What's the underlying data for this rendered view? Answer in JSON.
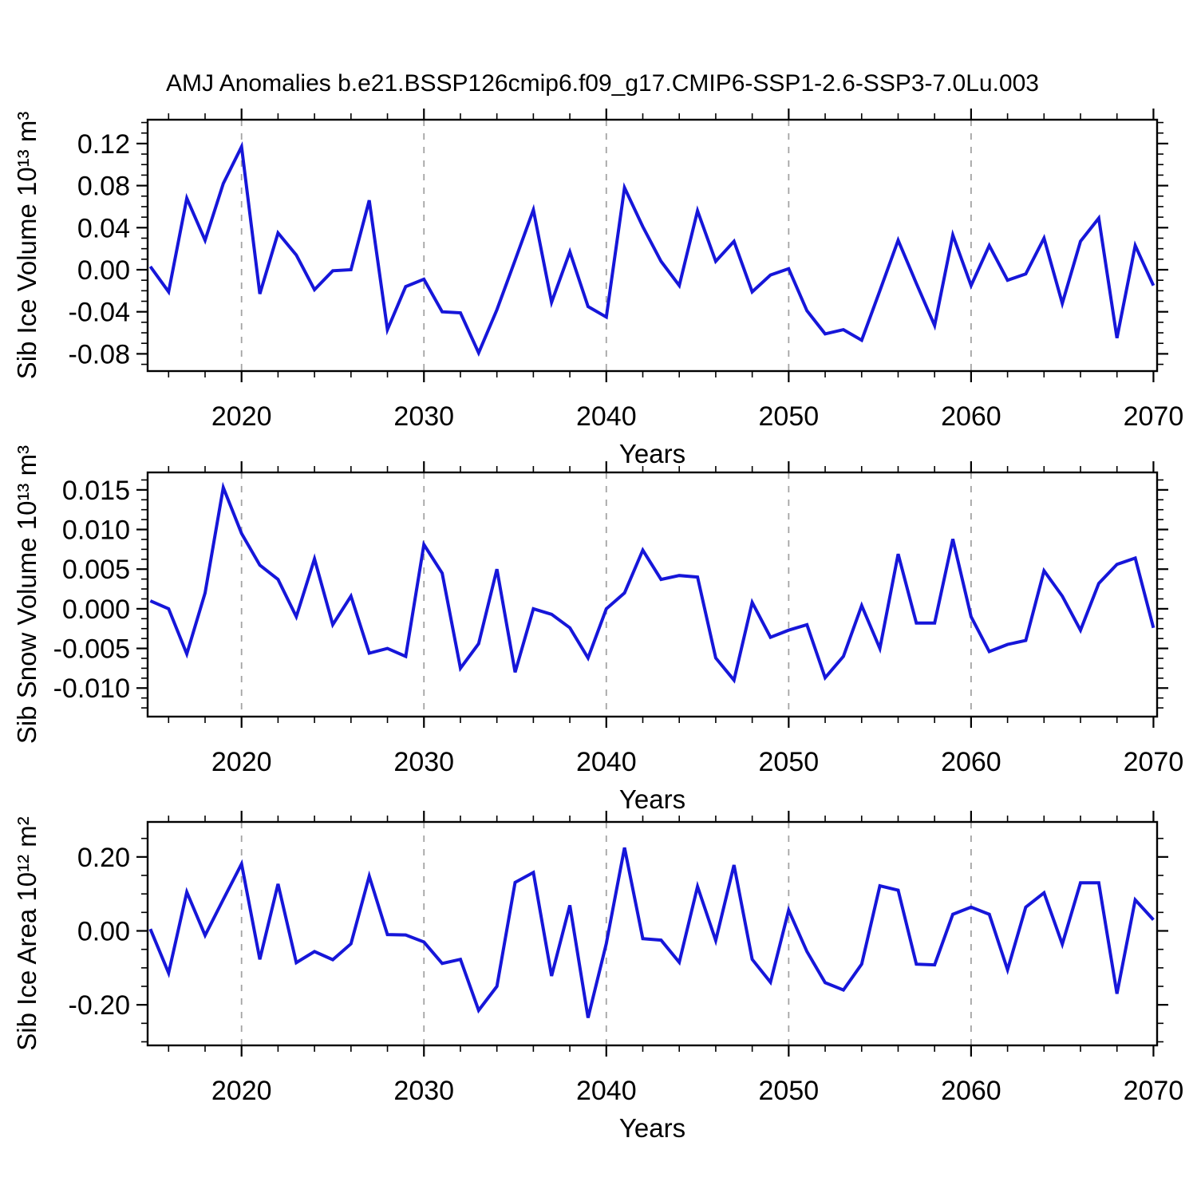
{
  "title": "AMJ Anomalies b.e21.BSSP126cmip6.f09_g17.CMIP6-SSP1-2.6-SSP3-7.0Lu.003",
  "style": {
    "line_color": "#1616d9",
    "grid_color": "#a3a3a3",
    "frame_color": "#000000"
  },
  "chart_data": [
    {
      "type": "line",
      "name": "sib-ice-volume",
      "ylabel": "Sib Ice Volume 10¹³ m³",
      "xlabel": "Years",
      "x": [
        2015,
        2016,
        2017,
        2018,
        2019,
        2020,
        2021,
        2022,
        2023,
        2024,
        2025,
        2026,
        2027,
        2028,
        2029,
        2030,
        2031,
        2032,
        2033,
        2034,
        2035,
        2036,
        2037,
        2038,
        2039,
        2040,
        2041,
        2042,
        2043,
        2044,
        2045,
        2046,
        2047,
        2048,
        2049,
        2050,
        2051,
        2052,
        2053,
        2054,
        2055,
        2056,
        2057,
        2058,
        2059,
        2060,
        2061,
        2062,
        2063,
        2064,
        2065,
        2066,
        2067,
        2068,
        2069,
        2070
      ],
      "values": [
        0.003,
        -0.021,
        0.068,
        0.028,
        0.082,
        0.117,
        -0.023,
        0.035,
        0.014,
        -0.019,
        -0.001,
        0.0,
        0.066,
        -0.057,
        -0.016,
        -0.009,
        -0.04,
        -0.041,
        -0.079,
        -0.038,
        0.009,
        0.057,
        -0.031,
        0.017,
        -0.035,
        -0.045,
        0.078,
        0.041,
        0.008,
        -0.015,
        0.056,
        0.008,
        0.027,
        -0.021,
        -0.005,
        0.001,
        -0.039,
        -0.061,
        -0.057,
        -0.067,
        -0.02,
        0.028,
        -0.013,
        -0.053,
        0.033,
        -0.015,
        0.023,
        -0.01,
        -0.004,
        0.03,
        -0.032,
        0.027,
        0.049,
        -0.065,
        0.023,
        -0.015
      ],
      "xlim": [
        2014.85,
        2070.2
      ],
      "ylim": [
        -0.0964,
        0.1427
      ],
      "yticks": {
        "values": [
          0.12,
          0.08,
          0.04,
          0.0,
          -0.04,
          -0.08
        ],
        "labels": [
          "0.12",
          "0.08",
          "0.04",
          "0.00",
          "-0.04",
          "-0.08"
        ]
      },
      "y_minor_step": 0.01,
      "xticks": {
        "values": [
          2020,
          2030,
          2040,
          2050,
          2060,
          2070
        ],
        "labels": [
          "2020",
          "2030",
          "2040",
          "2050",
          "2060",
          "2070"
        ]
      },
      "x_minor_step": 2,
      "grid_x": [
        2020,
        2030,
        2040,
        2050,
        2060
      ],
      "grid_on": true,
      "legend": "none"
    },
    {
      "type": "line",
      "name": "sib-snow-volume",
      "ylabel": "Sib Snow Volume 10¹³ m³",
      "xlabel": "Years",
      "x": [
        2015,
        2016,
        2017,
        2018,
        2019,
        2020,
        2021,
        2022,
        2023,
        2024,
        2025,
        2026,
        2027,
        2028,
        2029,
        2030,
        2031,
        2032,
        2033,
        2034,
        2035,
        2036,
        2037,
        2038,
        2039,
        2040,
        2041,
        2042,
        2043,
        2044,
        2045,
        2046,
        2047,
        2048,
        2049,
        2050,
        2051,
        2052,
        2053,
        2054,
        2055,
        2056,
        2057,
        2058,
        2059,
        2060,
        2061,
        2062,
        2063,
        2064,
        2065,
        2066,
        2067,
        2068,
        2069,
        2070
      ],
      "values": [
        0.001,
        0.0,
        -0.0057,
        0.002,
        0.0153,
        0.0095,
        0.0055,
        0.0037,
        -0.001,
        0.0063,
        -0.002,
        0.0016,
        -0.0056,
        -0.005,
        -0.006,
        0.0081,
        0.0045,
        -0.0075,
        -0.0044,
        0.005,
        -0.008,
        0.0,
        -0.0007,
        -0.0024,
        -0.0062,
        0.0,
        0.002,
        0.0074,
        0.0037,
        0.0042,
        0.004,
        -0.0062,
        -0.009,
        0.0008,
        -0.0036,
        -0.0027,
        -0.002,
        -0.0087,
        -0.006,
        0.0004,
        -0.005,
        0.0069,
        -0.0018,
        -0.0018,
        0.0088,
        -0.001,
        -0.0054,
        -0.0045,
        -0.004,
        0.0048,
        0.0016,
        -0.0027,
        0.0032,
        0.0056,
        0.0064,
        -0.0024
      ],
      "xlim": [
        2014.85,
        2070.2
      ],
      "ylim": [
        -0.0136,
        0.0172
      ],
      "yticks": {
        "values": [
          0.015,
          0.01,
          0.005,
          0.0,
          -0.005,
          -0.01
        ],
        "labels": [
          "0.015",
          "0.010",
          "0.005",
          "0.000",
          "-0.005",
          "-0.010"
        ]
      },
      "y_minor_step": 0.00125,
      "xticks": {
        "values": [
          2020,
          2030,
          2040,
          2050,
          2060,
          2070
        ],
        "labels": [
          "2020",
          "2030",
          "2040",
          "2050",
          "2060",
          "2070"
        ]
      },
      "x_minor_step": 2,
      "grid_x": [
        2020,
        2030,
        2040,
        2050,
        2060
      ],
      "grid_on": true,
      "legend": "none"
    },
    {
      "type": "line",
      "name": "sib-ice-area",
      "ylabel": "Sib Ice Area 10¹² m²",
      "xlabel": "Years",
      "x": [
        2015,
        2016,
        2017,
        2018,
        2019,
        2020,
        2021,
        2022,
        2023,
        2024,
        2025,
        2026,
        2027,
        2028,
        2029,
        2030,
        2031,
        2032,
        2033,
        2034,
        2035,
        2036,
        2037,
        2038,
        2039,
        2040,
        2041,
        2042,
        2043,
        2044,
        2045,
        2046,
        2047,
        2048,
        2049,
        2050,
        2051,
        2052,
        2053,
        2054,
        2055,
        2056,
        2057,
        2058,
        2059,
        2060,
        2061,
        2062,
        2063,
        2064,
        2065,
        2066,
        2067,
        2068,
        2069,
        2070
      ],
      "values": [
        0.005,
        -0.114,
        0.105,
        -0.012,
        0.085,
        0.181,
        -0.077,
        0.127,
        -0.086,
        -0.056,
        -0.078,
        -0.035,
        0.148,
        -0.01,
        -0.011,
        -0.03,
        -0.088,
        -0.077,
        -0.215,
        -0.15,
        0.131,
        0.158,
        -0.122,
        0.069,
        -0.235,
        -0.034,
        0.225,
        -0.021,
        -0.025,
        -0.085,
        0.12,
        -0.026,
        0.178,
        -0.077,
        -0.139,
        0.056,
        -0.056,
        -0.14,
        -0.16,
        -0.09,
        0.122,
        0.11,
        -0.09,
        -0.092,
        0.045,
        0.064,
        0.045,
        -0.105,
        0.064,
        0.103,
        -0.036,
        0.13,
        0.13,
        -0.17,
        0.084,
        0.03
      ],
      "xlim": [
        2014.85,
        2070.2
      ],
      "ylim": [
        -0.3097,
        0.2946
      ],
      "yticks": {
        "values": [
          0.2,
          0.0,
          -0.2
        ],
        "labels": [
          "0.20",
          "0.00",
          "-0.20"
        ]
      },
      "y_minor_step": 0.05,
      "xticks": {
        "values": [
          2020,
          2030,
          2040,
          2050,
          2060,
          2070
        ],
        "labels": [
          "2020",
          "2030",
          "2040",
          "2050",
          "2060",
          "2070"
        ]
      },
      "x_minor_step": 2,
      "grid_x": [
        2020,
        2030,
        2040,
        2050,
        2060
      ],
      "grid_on": true,
      "legend": "none"
    }
  ]
}
